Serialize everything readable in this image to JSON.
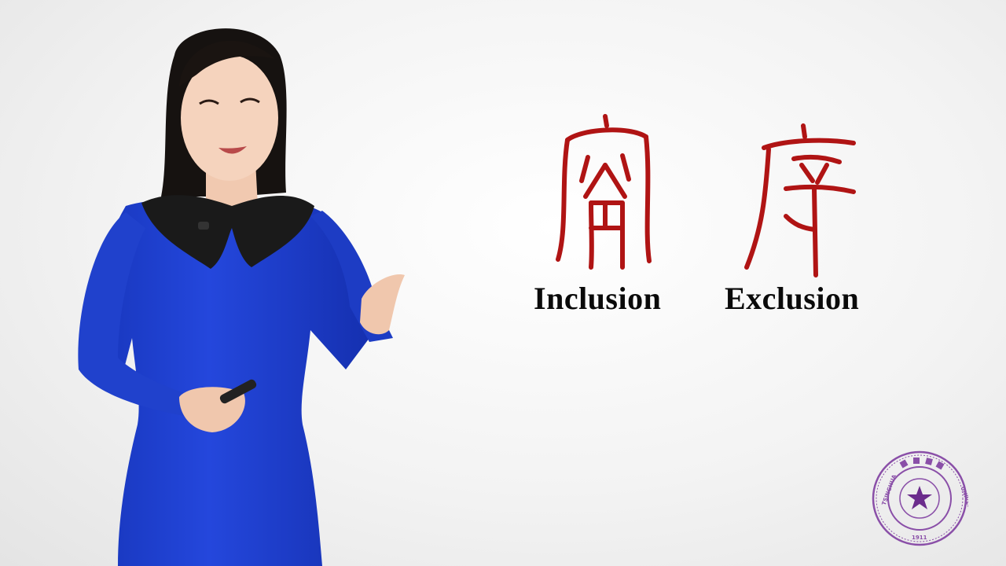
{
  "slide": {
    "left_term": "Inclusion",
    "right_term": "Exclusion",
    "left_glyph_icon": "seal-script-character-inclusion-icon",
    "right_glyph_icon": "seal-script-character-exclusion-icon",
    "glyph_color": "#b01414"
  },
  "logo": {
    "left_text": "TSINGHUA",
    "right_text": "UNIVERSITY",
    "year": "1911",
    "color": "#8a4fa8"
  },
  "presenter": {
    "icon": "presenter-woman-blue-dress-icon",
    "dress_color": "#1f3fd0",
    "collar_color": "#1a1a1a"
  }
}
